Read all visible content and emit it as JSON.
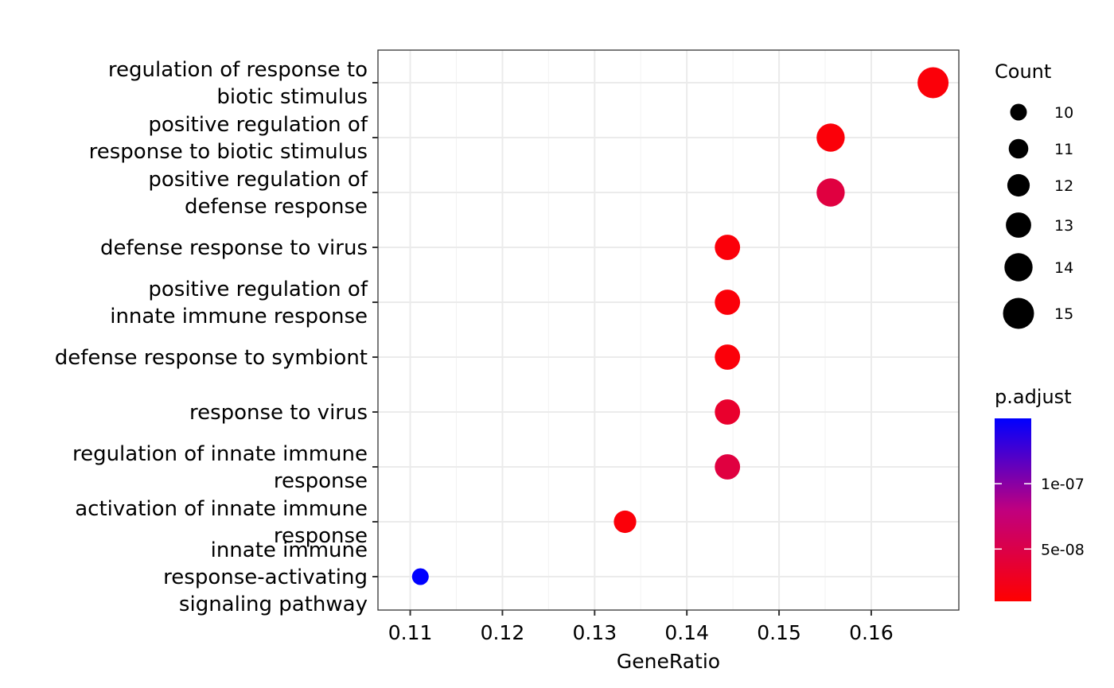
{
  "chart_data": {
    "type": "scatter",
    "xlabel": "GeneRatio",
    "ylabel": "",
    "xlim": [
      0.1065,
      0.1695
    ],
    "xticks": [
      0.11,
      0.12,
      0.13,
      0.14,
      0.15,
      0.16
    ],
    "xtick_labels": [
      "0.11",
      "0.12",
      "0.13",
      "0.14",
      "0.15",
      "0.16"
    ],
    "grid": true,
    "legend_position": "right",
    "terms": [
      {
        "label": [
          "regulation of response to",
          "biotic stimulus"
        ],
        "gene_ratio": 0.1667,
        "count": 15,
        "p_adjust": 1.5e-08
      },
      {
        "label": [
          "positive regulation of",
          "response to biotic stimulus"
        ],
        "gene_ratio": 0.1556,
        "count": 14,
        "p_adjust": 1.5e-08
      },
      {
        "label": [
          "positive regulation of",
          "defense response"
        ],
        "gene_ratio": 0.1556,
        "count": 14,
        "p_adjust": 4.5e-08
      },
      {
        "label": [
          "defense response to virus"
        ],
        "gene_ratio": 0.1444,
        "count": 13,
        "p_adjust": 1.5e-08
      },
      {
        "label": [
          "positive regulation of",
          "innate immune response"
        ],
        "gene_ratio": 0.1444,
        "count": 13,
        "p_adjust": 1.5e-08
      },
      {
        "label": [
          "defense response to symbiont"
        ],
        "gene_ratio": 0.1444,
        "count": 13,
        "p_adjust": 1.5e-08
      },
      {
        "label": [
          "response to virus"
        ],
        "gene_ratio": 0.1444,
        "count": 13,
        "p_adjust": 3.5e-08
      },
      {
        "label": [
          "regulation of innate immune",
          "response"
        ],
        "gene_ratio": 0.1444,
        "count": 13,
        "p_adjust": 4.5e-08
      },
      {
        "label": [
          "activation of innate immune",
          "response"
        ],
        "gene_ratio": 0.1333,
        "count": 12,
        "p_adjust": 1.5e-08
      },
      {
        "label": [
          "innate immune",
          "response-activating",
          "signaling pathway"
        ],
        "gene_ratio": 0.1111,
        "count": 10,
        "p_adjust": 1.5e-07
      }
    ],
    "size_legend": {
      "title": "Count",
      "breaks": [
        10,
        11,
        12,
        13,
        14,
        15
      ],
      "labels": [
        "10",
        "11",
        "12",
        "13",
        "14",
        "15"
      ]
    },
    "color_legend": {
      "title": "p.adjust",
      "range": [
        1e-08,
        1.5e-07
      ],
      "ticks": [
        1e-07,
        5e-08
      ],
      "tick_labels": [
        "1e-07",
        "5e-08"
      ],
      "low_color": "#ff0000",
      "high_color": "#0000ff"
    }
  }
}
